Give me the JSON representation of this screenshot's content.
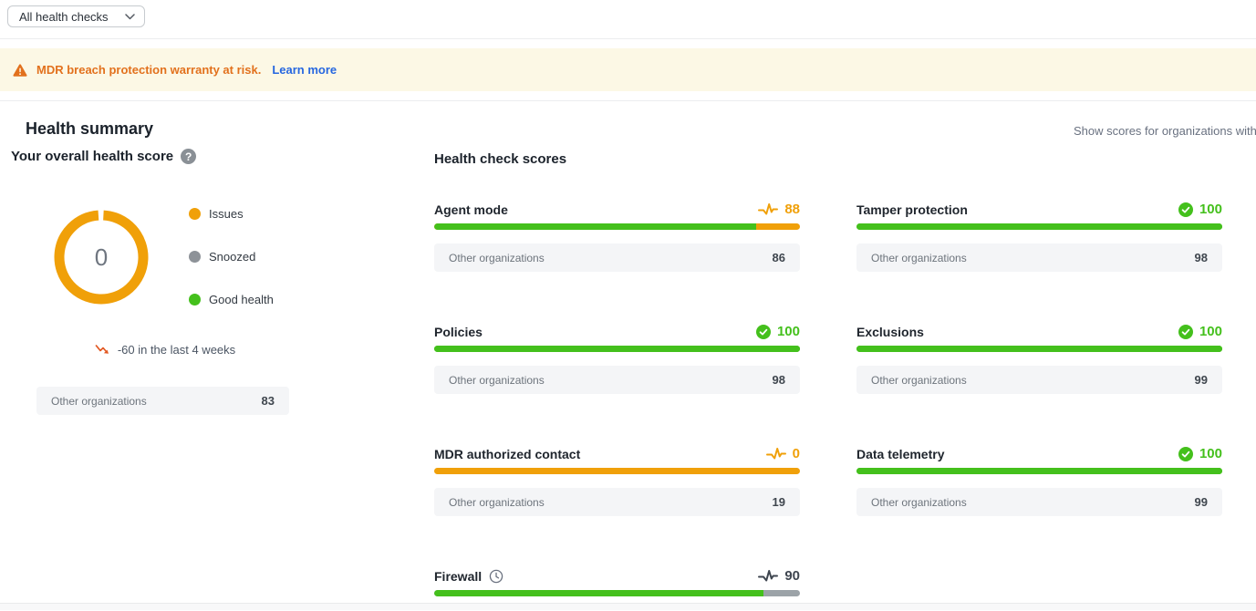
{
  "filter": {
    "label": "All health checks"
  },
  "banner": {
    "message": "MDR breach protection warranty at risk.",
    "link_label": "Learn more"
  },
  "header": {
    "title": "Health summary",
    "right_note": "Show scores for organizations with"
  },
  "overall": {
    "label": "Your overall health score",
    "score": "0",
    "legend": [
      {
        "label": "Issues",
        "color": "#f0a009"
      },
      {
        "label": "Snoozed",
        "color": "#8d9298"
      },
      {
        "label": "Good health",
        "color": "#44c01c"
      }
    ],
    "trend_text": "-60 in the last 4 weeks",
    "other_label": "Other organizations",
    "other_value": "83"
  },
  "checks": {
    "title": "Health check scores",
    "other_label": "Other organizations",
    "items": [
      {
        "name": "Agent mode",
        "score": 88,
        "status": "warning",
        "pending": false,
        "other": 86
      },
      {
        "name": "Tamper protection",
        "score": 100,
        "status": "good",
        "pending": false,
        "other": 98
      },
      {
        "name": "Policies",
        "score": 100,
        "status": "good",
        "pending": false,
        "other": 98
      },
      {
        "name": "Exclusions",
        "score": 100,
        "status": "good",
        "pending": false,
        "other": 99
      },
      {
        "name": "MDR authorized contact",
        "score": 0,
        "status": "warning",
        "pending": false,
        "other": 19
      },
      {
        "name": "Data telemetry",
        "score": 100,
        "status": "good",
        "pending": false,
        "other": 99
      },
      {
        "name": "Firewall",
        "score": 90,
        "status": "pending",
        "pending": true,
        "other": null
      }
    ]
  },
  "colors": {
    "good": "#44c01c",
    "warning": "#f0a009",
    "pending_text": "#3f4650",
    "track_gray": "#9ca3a8",
    "donut_ring": "#f0a009",
    "banner_orange": "#e2711d",
    "link_blue": "#2667e0",
    "trend_icon": "#e25822"
  }
}
